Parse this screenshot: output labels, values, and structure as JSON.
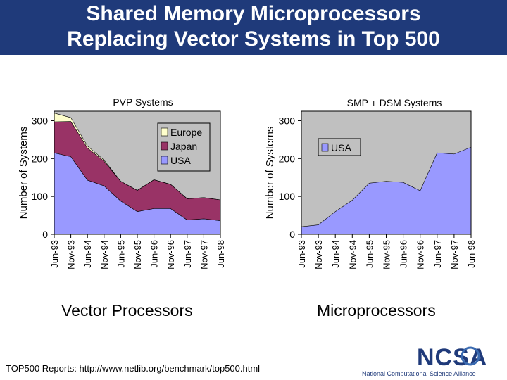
{
  "title": {
    "line1": "Shared Memory Microprocessors",
    "line2": "Replacing Vector Systems in Top 500"
  },
  "colors": {
    "title_band": "#1f3a7a",
    "plot_bg": "#c0c0c0",
    "usa": "#9999ff",
    "japan": "#993366",
    "europe": "#ffffcc"
  },
  "chart_data": [
    {
      "type": "area",
      "title": "PVP Systems",
      "ylabel": "Number of Systems",
      "caption": "Vector Processors",
      "categories": [
        "Jun-93",
        "Nov-93",
        "Jun-94",
        "Nov-94",
        "Jun-95",
        "Nov-95",
        "Jun-96",
        "Nov-96",
        "Jun-97",
        "Nov-97",
        "Jun-98"
      ],
      "yticks": [
        0,
        100,
        200,
        300
      ],
      "ylim": [
        0,
        325
      ],
      "stacked": true,
      "legend_position": "top-right",
      "series": [
        {
          "name": "USA",
          "color": "#9999ff",
          "values": [
            215,
            205,
            143,
            128,
            88,
            60,
            68,
            68,
            38,
            41,
            36
          ]
        },
        {
          "name": "Japan",
          "color": "#993366",
          "values": [
            82,
            93,
            85,
            65,
            52,
            56,
            76,
            64,
            56,
            56,
            55
          ]
        },
        {
          "name": "Europe",
          "color": "#ffffcc",
          "values": [
            23,
            10,
            5,
            3,
            0,
            0,
            0,
            0,
            0,
            0,
            0
          ]
        }
      ]
    },
    {
      "type": "area",
      "title": "SMP + DSM Systems",
      "ylabel": "Number of Systems",
      "caption": "Microprocessors",
      "categories": [
        "Jun-93",
        "Nov-93",
        "Jun-94",
        "Nov-94",
        "Jun-95",
        "Nov-95",
        "Jun-96",
        "Nov-96",
        "Jun-97",
        "Nov-97",
        "Jun-98"
      ],
      "yticks": [
        0,
        100,
        200,
        300
      ],
      "ylim": [
        0,
        325
      ],
      "stacked": true,
      "legend_position": "top-right",
      "series": [
        {
          "name": "USA",
          "color": "#9999ff",
          "values": [
            20,
            25,
            60,
            90,
            135,
            140,
            137,
            115,
            215,
            212,
            230
          ]
        }
      ]
    }
  ],
  "footer": {
    "source": "TOP500 Reports:  http://www.netlib.org/benchmark/top500.html",
    "logo": "NCSA",
    "org": "National Computational Science Alliance"
  }
}
